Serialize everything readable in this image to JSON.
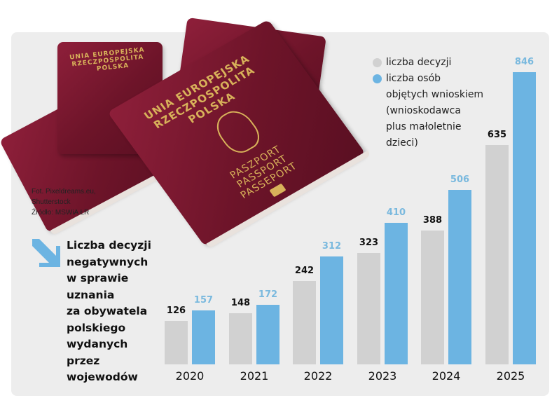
{
  "colors": {
    "decisions": "#d1d1d1",
    "persons": "#6cb4e2",
    "persons_label": "#7ab9de",
    "decisions_label": "#111111",
    "panel_bg": "#ededed",
    "arrow": "#6cb4e2"
  },
  "photo": {
    "cover_lines": "UNIA EUROPEJSKA\nRZECZPOSPOLITA\nPOLSKA",
    "passport_lines": "PASZPORT\nPASSPORT\nPASSEPORT"
  },
  "credits": {
    "photo": "Fot. Pixeldreams.eu,",
    "agency": "Shutterstock",
    "source": "Źródło: MSWiA   ŁR"
  },
  "title_lines": [
    "Liczba decyzji",
    "negatywnych",
    "w sprawie",
    "uznania",
    "za obywatela",
    "polskiego",
    "wydanych",
    "przez",
    "wojewodów"
  ],
  "legend": {
    "decisions": "liczba decyzji",
    "persons_lines": [
      "liczba osób",
      "objętych wnioskiem",
      "(wnioskodawca",
      "plus małoletnie",
      "dzieci)"
    ]
  },
  "chart_data": {
    "type": "bar",
    "title": "Liczba decyzji negatywnych w sprawie uznania za obywatela polskiego wydanych przez wojewodów",
    "categories": [
      "2020",
      "2021",
      "2022",
      "2023",
      "2024",
      "2025"
    ],
    "series": [
      {
        "name": "liczba decyzji",
        "values": [
          126,
          148,
          242,
          323,
          388,
          635
        ]
      },
      {
        "name": "liczba osób objętych wnioskiem (wnioskodawca plus małoletnie dzieci)",
        "values": [
          157,
          172,
          312,
          410,
          506,
          846
        ]
      }
    ],
    "xlabel": "",
    "ylabel": "",
    "grid": false,
    "data_labels": true,
    "legend_position": "top-right",
    "source": "MSWiA"
  }
}
